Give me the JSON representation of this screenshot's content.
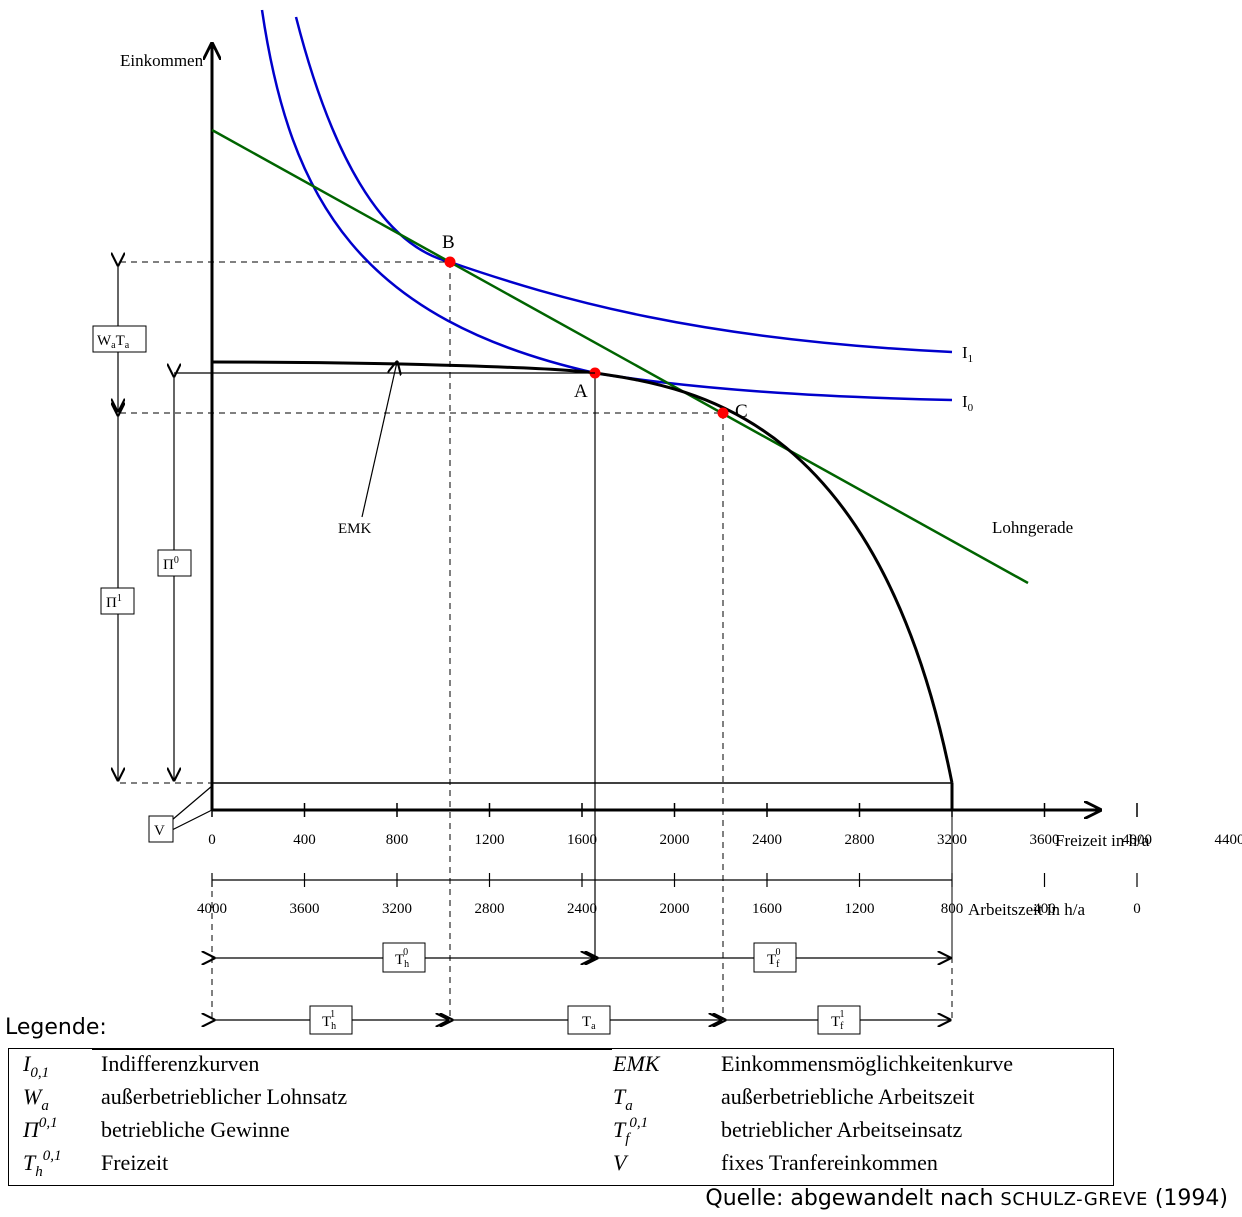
{
  "axes": {
    "y_label": "Einkommen",
    "x_label": "Freizeit in h/a",
    "x2_label": "Arbeitszeit in h/a",
    "x_ticks": [
      "0",
      "400",
      "800",
      "1200",
      "1600",
      "2000",
      "2400",
      "2800",
      "3200",
      "3600",
      "4000",
      "4400"
    ],
    "x2_ticks": [
      "4000",
      "3600",
      "3200",
      "2800",
      "2400",
      "2000",
      "1600",
      "1200",
      "800",
      "400",
      "0"
    ]
  },
  "curves": {
    "i1": "I",
    "i1_sub": "1",
    "i0": "I",
    "i0_sub": "0",
    "wage_line": "Lohngerade",
    "emk": "EMK"
  },
  "points": {
    "a": "A",
    "b": "B",
    "c": "C"
  },
  "boxes": {
    "wa_ta": {
      "w": "W",
      "w_sub": "a",
      "t": "T",
      "t_sub": "a"
    },
    "pi0": {
      "base": "Π",
      "sup": "0"
    },
    "pi1": {
      "base": "Π",
      "sup": "1"
    },
    "v": "V",
    "th0": {
      "base": "T",
      "sub": "h",
      "sup": "0"
    },
    "tf0": {
      "base": "T",
      "sub": "f",
      "sup": "0"
    },
    "th1": {
      "base": "T",
      "sub": "h",
      "sup": "1"
    },
    "ta": {
      "base": "T",
      "sub": "a"
    },
    "tf1": {
      "base": "T",
      "sub": "f",
      "sup": "1"
    }
  },
  "legend": {
    "title": "Legende:",
    "rows": [
      {
        "sym": "I",
        "sym_sub": "0,1",
        "sym_sup": "",
        "text": "Indifferenzkurven",
        "sym2": "EMK",
        "sym2_sub": "",
        "sym2_sup": "",
        "text2": "Einkommensmöglichkeitenkurve"
      },
      {
        "sym": "W",
        "sym_sub": "a",
        "sym_sup": "",
        "text": "außerbetrieblicher Lohnsatz",
        "sym2": "T",
        "sym2_sub": "a",
        "sym2_sup": "",
        "text2": "außerbetriebliche Arbeitszeit"
      },
      {
        "sym": "Π",
        "sym_sub": "",
        "sym_sup": "0,1",
        "text": "betriebliche Gewinne",
        "sym2": "T",
        "sym2_sub": "f",
        "sym2_sup": "0,1",
        "text2": "betrieblicher Arbeitseinsatz"
      },
      {
        "sym": "T",
        "sym_sub": "h",
        "sym_sup": "0,1",
        "text": "Freizeit",
        "sym2": "V",
        "sym2_sub": "",
        "sym2_sup": "",
        "text2": "fixes Tranfereinkommen"
      }
    ]
  },
  "source": {
    "prefix": "Quelle: abgewandelt nach ",
    "author": "SCHULZ-GREVE",
    "year": " (1994)"
  },
  "colors": {
    "indifference": "#0000cc",
    "wage_line": "#006400",
    "emk": "#000000",
    "points": "#ff0000"
  }
}
